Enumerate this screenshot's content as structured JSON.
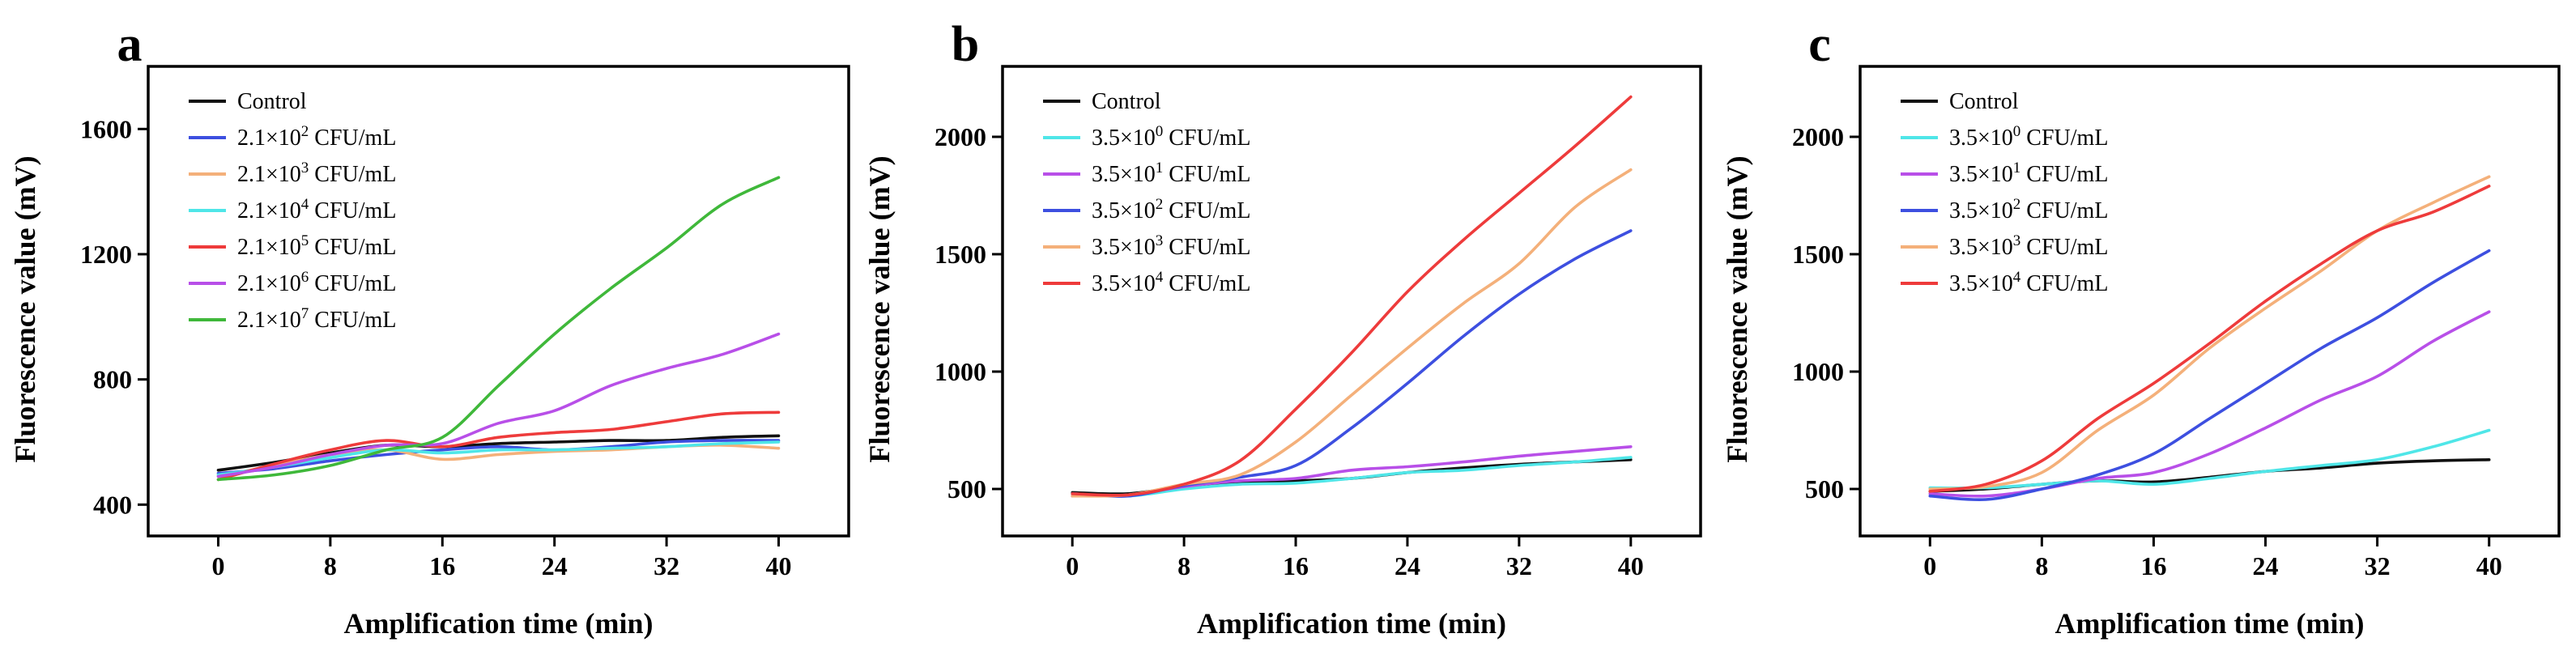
{
  "chart_data": [
    {
      "type": "line",
      "panel": "a",
      "xlabel": "Amplification time (min)",
      "ylabel": "Fluorescence value (mV)",
      "xlim": [
        -5,
        45
      ],
      "ylim": [
        300,
        1800
      ],
      "xticks": [
        0,
        8,
        16,
        24,
        32,
        40
      ],
      "yticks": [
        400,
        800,
        1200,
        1600
      ],
      "legend_position": "top-left",
      "x": [
        0,
        4,
        8,
        12,
        16,
        20,
        24,
        28,
        32,
        36,
        40
      ],
      "series": [
        {
          "name": "Control",
          "sup": "",
          "color": "#111111",
          "values": [
            510,
            535,
            565,
            590,
            585,
            595,
            600,
            605,
            605,
            615,
            620
          ]
        },
        {
          "name": "2.1×10",
          "sup": "2",
          "suffix": " CFU/mL",
          "color": "#3d4fe0",
          "values": [
            500,
            515,
            540,
            560,
            575,
            585,
            575,
            585,
            600,
            605,
            605
          ]
        },
        {
          "name": "2.1×10",
          "sup": "3",
          "suffix": " CFU/mL",
          "color": "#f4b07a",
          "values": [
            490,
            525,
            560,
            575,
            545,
            560,
            570,
            575,
            585,
            590,
            580
          ]
        },
        {
          "name": "2.1×10",
          "sup": "4",
          "suffix": " CFU/mL",
          "color": "#4fe6e8",
          "values": [
            495,
            520,
            550,
            575,
            565,
            575,
            575,
            580,
            585,
            595,
            600
          ]
        },
        {
          "name": "2.1×10",
          "sup": "5",
          "suffix": " CFU/mL",
          "color": "#ee3b3b",
          "values": [
            480,
            530,
            575,
            605,
            585,
            615,
            630,
            640,
            665,
            690,
            695
          ]
        },
        {
          "name": "2.1×10",
          "sup": "6",
          "suffix": " CFU/mL",
          "color": "#b84fe8",
          "values": [
            490,
            520,
            560,
            590,
            595,
            660,
            700,
            780,
            835,
            880,
            945
          ]
        },
        {
          "name": "2.1×10",
          "sup": "7",
          "suffix": " CFU/mL",
          "color": "#3fb83a",
          "values": [
            480,
            495,
            525,
            575,
            615,
            780,
            945,
            1090,
            1220,
            1360,
            1445
          ]
        }
      ]
    },
    {
      "type": "line",
      "panel": "b",
      "xlabel": "Amplification time (min)",
      "ylabel": "Fluorescence value (mV)",
      "xlim": [
        -5,
        45
      ],
      "ylim": [
        300,
        2300
      ],
      "xticks": [
        0,
        8,
        16,
        24,
        32,
        40
      ],
      "yticks": [
        500,
        1000,
        1500,
        2000
      ],
      "legend_position": "top-left",
      "x": [
        0,
        4,
        8,
        12,
        16,
        20,
        24,
        28,
        32,
        36,
        40
      ],
      "series": [
        {
          "name": "Control",
          "sup": "",
          "color": "#111111",
          "values": [
            485,
            480,
            510,
            530,
            535,
            545,
            570,
            590,
            605,
            615,
            625
          ]
        },
        {
          "name": "3.5×10",
          "sup": "0",
          "suffix": " CFU/mL",
          "color": "#4fe6e8",
          "values": [
            480,
            470,
            500,
            520,
            525,
            545,
            570,
            580,
            600,
            615,
            635
          ]
        },
        {
          "name": "3.5×10",
          "sup": "1",
          "suffix": " CFU/mL",
          "color": "#b84fe8",
          "values": [
            470,
            475,
            510,
            535,
            545,
            580,
            595,
            615,
            640,
            660,
            680
          ]
        },
        {
          "name": "3.5×10",
          "sup": "2",
          "suffix": " CFU/mL",
          "color": "#3d4fe0",
          "values": [
            480,
            470,
            515,
            550,
            600,
            760,
            950,
            1150,
            1330,
            1480,
            1600
          ]
        },
        {
          "name": "3.5×10",
          "sup": "3",
          "suffix": " CFU/mL",
          "color": "#f4b07a",
          "values": [
            470,
            475,
            520,
            560,
            700,
            900,
            1100,
            1290,
            1460,
            1700,
            1860
          ]
        },
        {
          "name": "3.5×10",
          "sup": "4",
          "suffix": " CFU/mL",
          "color": "#ee3b3b",
          "values": [
            480,
            475,
            520,
            620,
            840,
            1080,
            1340,
            1560,
            1760,
            1960,
            2170
          ]
        }
      ]
    },
    {
      "type": "line",
      "panel": "c",
      "xlabel": "Amplification time (min)",
      "ylabel": "Fluorescence value (mV)",
      "xlim": [
        -5,
        45
      ],
      "ylim": [
        300,
        2300
      ],
      "xticks": [
        0,
        8,
        16,
        24,
        32,
        40
      ],
      "yticks": [
        500,
        1000,
        1500,
        2000
      ],
      "legend_position": "top-left",
      "x": [
        0,
        4,
        8,
        12,
        16,
        20,
        24,
        28,
        32,
        36,
        40
      ],
      "series": [
        {
          "name": "Control",
          "sup": "",
          "color": "#111111",
          "values": [
            490,
            500,
            520,
            535,
            530,
            550,
            575,
            590,
            610,
            620,
            625
          ]
        },
        {
          "name": "3.5×10",
          "sup": "0",
          "suffix": " CFU/mL",
          "color": "#4fe6e8",
          "values": [
            505,
            505,
            520,
            535,
            520,
            545,
            575,
            600,
            625,
            680,
            750
          ]
        },
        {
          "name": "3.5×10",
          "sup": "1",
          "suffix": " CFU/mL",
          "color": "#b84fe8",
          "values": [
            480,
            470,
            500,
            545,
            570,
            650,
            760,
            880,
            980,
            1130,
            1255
          ]
        },
        {
          "name": "3.5×10",
          "sup": "2",
          "suffix": " CFU/mL",
          "color": "#3d4fe0",
          "values": [
            470,
            455,
            500,
            560,
            650,
            800,
            950,
            1100,
            1230,
            1380,
            1515
          ]
        },
        {
          "name": "3.5×10",
          "sup": "3",
          "suffix": " CFU/mL",
          "color": "#f4b07a",
          "values": [
            500,
            510,
            570,
            750,
            900,
            1100,
            1270,
            1430,
            1600,
            1720,
            1830
          ]
        },
        {
          "name": "3.5×10",
          "sup": "4",
          "suffix": " CFU/mL",
          "color": "#ee3b3b",
          "values": [
            490,
            520,
            620,
            800,
            950,
            1120,
            1300,
            1460,
            1600,
            1680,
            1790
          ]
        }
      ]
    }
  ]
}
